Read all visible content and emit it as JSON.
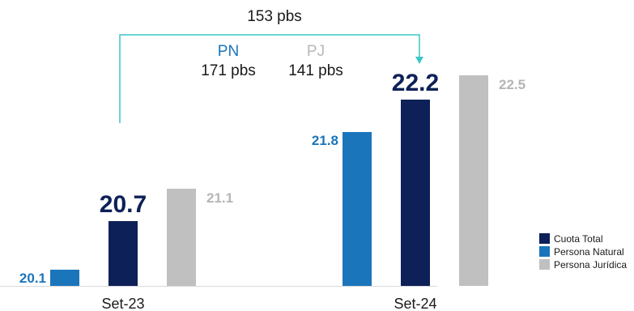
{
  "colors": {
    "natural": "#1b75bb",
    "total": "#0d2057",
    "juridica": "#c0c0c0",
    "arrow": "#3cc6c9",
    "text": "#1a1a1a"
  },
  "annotation": {
    "total_change": "153 pbs",
    "pn_label": "PN",
    "pn_value": "171 pbs",
    "pj_label": "PJ",
    "pj_value": "141 pbs"
  },
  "legend": {
    "items": [
      {
        "label": "Cuota  Total",
        "color": "#0d2057"
      },
      {
        "label": "Persona  Natural",
        "color": "#1b75bb"
      },
      {
        "label": "Persona  Jurídica",
        "color": "#c0c0c0"
      }
    ],
    "placement": "bottom-right"
  },
  "chart_data": {
    "type": "bar",
    "categories": [
      "Set-23",
      "Set-24"
    ],
    "series": [
      {
        "name": "Persona  Natural",
        "values": [
          20.1,
          21.8
        ],
        "labels": [
          "20.1",
          "21.8"
        ],
        "color": "#1b75bb"
      },
      {
        "name": "Cuota  Total",
        "values": [
          20.7,
          22.2
        ],
        "labels": [
          "20.7",
          "22.2"
        ],
        "color": "#0d2057"
      },
      {
        "name": "Persona  Jurídica",
        "values": [
          21.1,
          22.5
        ],
        "labels": [
          "21.1",
          "22.5"
        ],
        "color": "#c0c0c0"
      }
    ],
    "axis_visible": false,
    "grid": false
  }
}
